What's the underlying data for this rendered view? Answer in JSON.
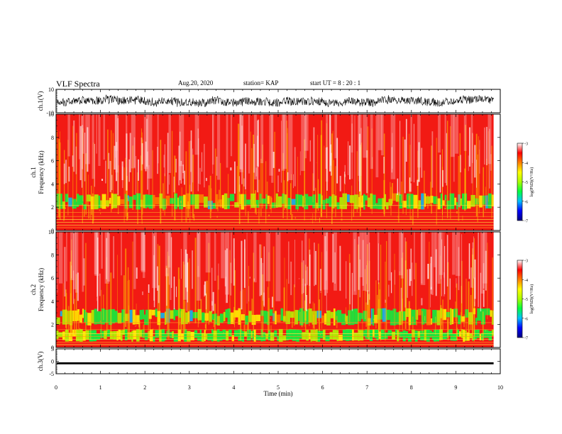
{
  "header": {
    "title": "VLF Spectra",
    "date": "Aug.20, 2020",
    "station": "station= KAP",
    "start": "start  UT =   8  : 20 : 1"
  },
  "chart_data": {
    "type": "heatmap",
    "x_axis": {
      "label": "Time  (min)",
      "range": [
        0,
        10
      ],
      "ticks": [
        "0",
        "1",
        "2",
        "3",
        "4",
        "5",
        "6",
        "7",
        "8",
        "9",
        "10"
      ]
    },
    "panels": [
      {
        "id": "ch1-waveform",
        "type": "line",
        "ylabel": "ch.1(V)",
        "ylim": [
          -10,
          10
        ],
        "ticks": [
          "10",
          "-10"
        ],
        "data_end_min": 9.85
      },
      {
        "id": "ch1-spectrum",
        "type": "heatmap",
        "ylabel": "ch.1\nFrequency  (kHz)",
        "ylim": [
          0,
          10
        ],
        "ticks": [
          "0",
          "2",
          "4",
          "6",
          "8",
          "10"
        ],
        "data_end_min": 9.85,
        "green_band_khz": [
          1.8,
          3.2
        ]
      },
      {
        "id": "ch2-spectrum",
        "type": "heatmap",
        "ylabel": "ch.2\nFrequency  (kHz)",
        "ylim": [
          0,
          10
        ],
        "ticks": [
          "0",
          "2",
          "4",
          "6",
          "8",
          "10"
        ],
        "data_end_min": 9.85,
        "green_band_khz": [
          0.5,
          3.5
        ]
      },
      {
        "id": "ch3-waveform",
        "type": "line",
        "ylabel": "ch.3(V)",
        "ylim": [
          -5,
          5
        ],
        "ticks": [
          "5",
          "0",
          "-5"
        ],
        "data_end_min": 9.85,
        "level_v": -0.8
      }
    ],
    "colorbar": {
      "label": "log(PSD)(V²/Hz)",
      "range": [
        -7,
        -3
      ],
      "ticks": [
        "-3",
        "-4",
        "-5",
        "-6",
        "-7"
      ],
      "colors": [
        "#000080",
        "#0000ff",
        "#00c0ff",
        "#00ff40",
        "#aaff00",
        "#ffff00",
        "#ff8000",
        "#ff0000",
        "#ffffff"
      ]
    }
  }
}
